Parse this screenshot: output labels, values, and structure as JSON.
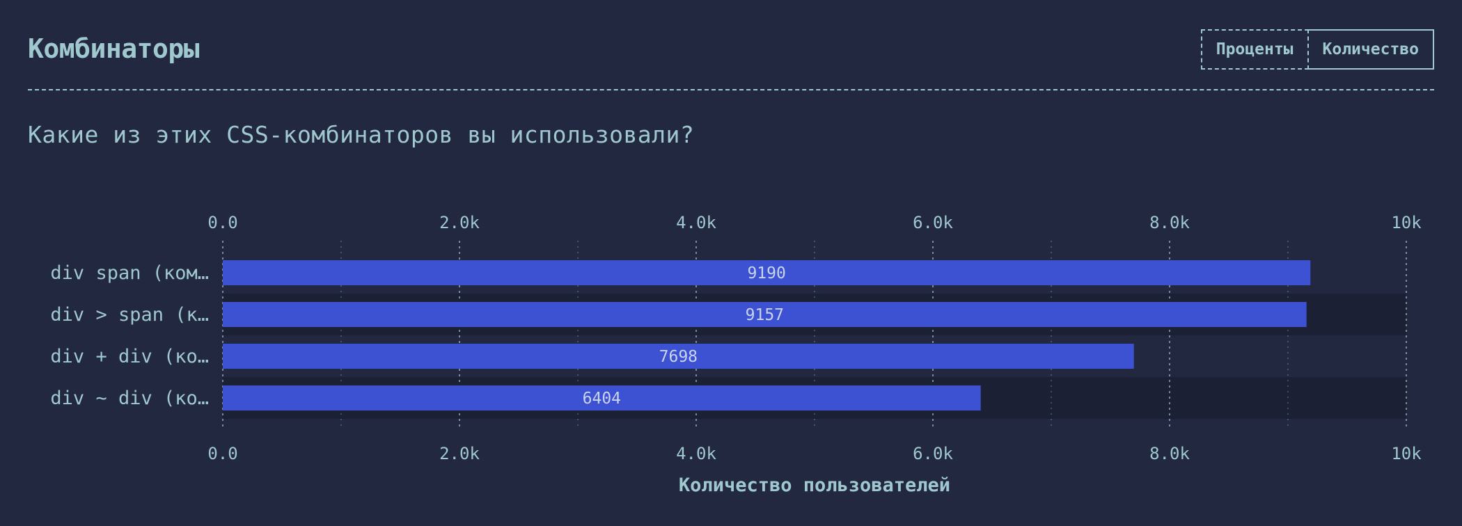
{
  "header": {
    "title": "Комбинаторы",
    "toggle_percent": "Проценты",
    "toggle_count": "Количество"
  },
  "question": "Какие из этих CSS-комбинаторов вы использовали?",
  "colors": {
    "background": "#232841",
    "text": "#9fc8cf",
    "bar": "#3d52d3",
    "band_dark": "#1c2034"
  },
  "chart_data": {
    "type": "bar",
    "orientation": "horizontal",
    "categories": [
      "div span (ком…",
      "div > span (к…",
      "div + div (ко…",
      "div ~ div (ко…"
    ],
    "values": [
      9190,
      9157,
      7698,
      6404
    ],
    "xlim": [
      0,
      10000
    ],
    "tick_values": [
      0,
      2000,
      4000,
      6000,
      8000,
      10000
    ],
    "tick_labels": [
      "0.0",
      "2.0k",
      "4.0k",
      "6.0k",
      "8.0k",
      "10k"
    ],
    "minor_ticks": [
      1000,
      3000,
      5000,
      7000,
      9000
    ],
    "xlabel": "Количество пользователей",
    "grid": true,
    "axis_labels_top_and_bottom": true
  }
}
